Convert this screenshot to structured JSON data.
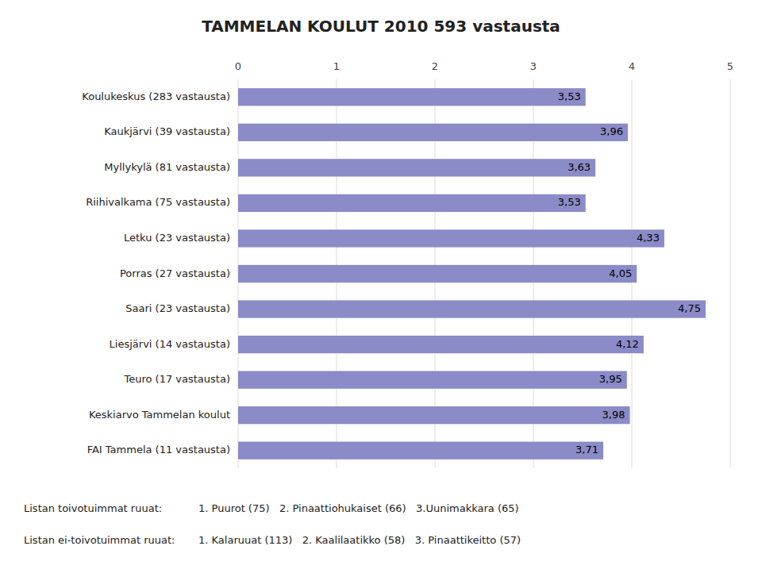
{
  "chart_data": {
    "type": "bar",
    "orientation": "horizontal",
    "title": "TAMMELAN KOULUT 2010  593 vastausta",
    "categories": [
      "Koulukeskus (283 vastausta)",
      "Kaukjärvi (39 vastausta)",
      "Myllykylä (81 vastausta)",
      "Riihivalkama (75 vastausta)",
      "Letku (23 vastausta)",
      "Porras (27 vastausta)",
      "Saari (23 vastausta)",
      "Liesjärvi (14 vastausta)",
      "Teuro (17 vastausta)",
      "Keskiarvo Tammelan koulut",
      "FAI Tammela (11 vastausta)"
    ],
    "values": [
      3.53,
      3.96,
      3.63,
      3.53,
      4.33,
      4.05,
      4.75,
      4.12,
      3.95,
      3.98,
      3.71
    ],
    "value_labels": [
      "3,53",
      "3,96",
      "3,63",
      "3,53",
      "4,33",
      "4,05",
      "4,75",
      "4,12",
      "3,95",
      "3,98",
      "3,71"
    ],
    "data_labels": true,
    "color": "#8b8bc8",
    "xlim": [
      0,
      5
    ],
    "xticks": [
      0,
      1,
      2,
      3,
      4,
      5
    ],
    "grid": true,
    "annotations": [
      "Listan toivotuimmat ruuat:",
      "1. Puurot (75)   2. Pinaattiohukaiset (66)   3.Uunimakkara (65)",
      "Listan ei-toivotuimmat ruuat:",
      "1. Kalaruuat (113)   2. Kaalilaatikko (58)   3. Pinaattikeitto (57)"
    ]
  }
}
